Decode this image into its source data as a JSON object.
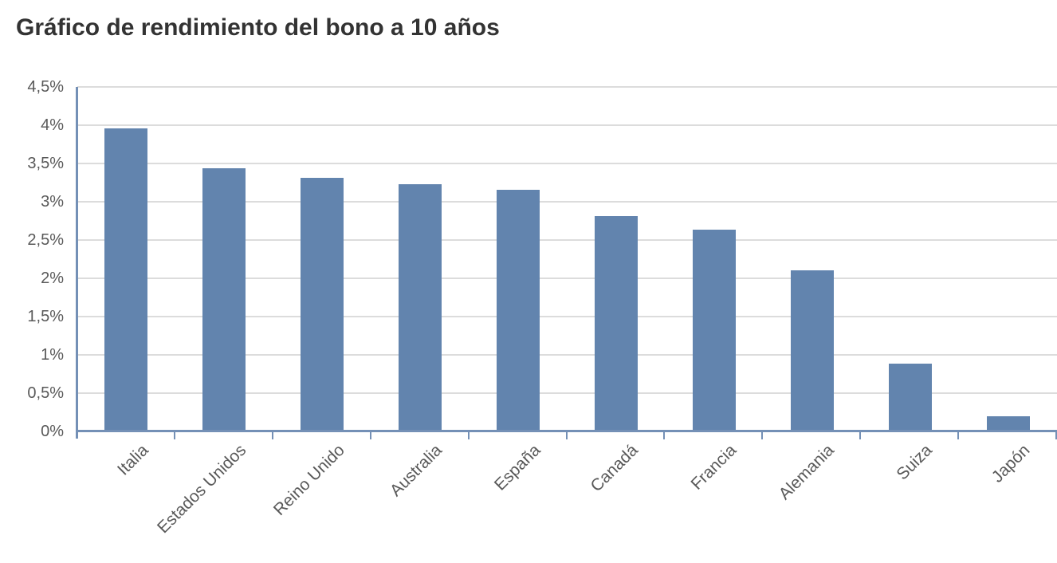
{
  "title": "Gráfico de rendimiento del bono a 10 años",
  "chart_data": {
    "type": "bar",
    "title": "Gráfico de rendimiento del bono a 10 años",
    "categories": [
      "Italia",
      "Estados Unidos",
      "Reino Unido",
      "Australia",
      "España",
      "Canadá",
      "Francia",
      "Alemania",
      "Suiza",
      "Japón"
    ],
    "values": [
      3.96,
      3.44,
      3.31,
      3.23,
      3.16,
      2.81,
      2.64,
      2.1,
      0.89,
      0.2
    ],
    "value_suffix": "%",
    "xlabel": "",
    "ylabel": "",
    "ylim": [
      0,
      4.5
    ],
    "ytick_step": 0.5,
    "ytick_labels": [
      "0%",
      "0,5%",
      "1%",
      "1,5%",
      "2%",
      "2,5%",
      "3%",
      "3,5%",
      "4%",
      "4,5%"
    ],
    "grid": true,
    "legend": false,
    "colors": {
      "bar": "#6284AE",
      "axis": "#7490B6",
      "grid": "#DCDCDC",
      "tick_label": "#595959",
      "title": "#333333"
    }
  }
}
